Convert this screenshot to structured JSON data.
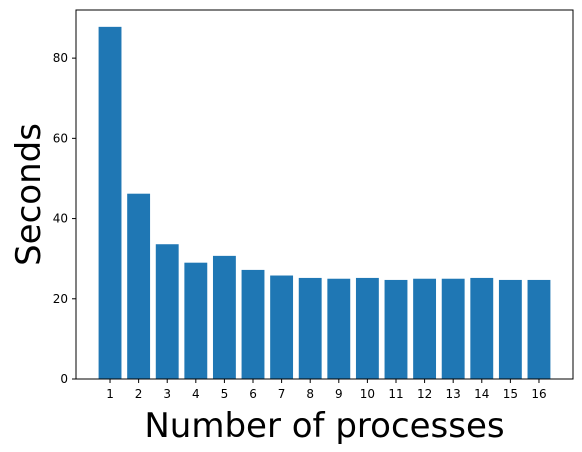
{
  "chart_data": {
    "type": "bar",
    "title": "",
    "xlabel": "Number of processes",
    "ylabel": "Seconds",
    "categories": [
      "1",
      "2",
      "3",
      "4",
      "5",
      "6",
      "7",
      "8",
      "9",
      "10",
      "11",
      "12",
      "13",
      "14",
      "15",
      "16"
    ],
    "values": [
      87.8,
      46.2,
      33.6,
      29.0,
      30.7,
      27.2,
      25.8,
      25.2,
      25.0,
      25.2,
      24.7,
      25.0,
      25.0,
      25.2,
      24.7,
      24.7
    ],
    "ylim": [
      0,
      92
    ],
    "yticks": [
      0,
      20,
      40,
      60,
      80
    ],
    "grid": false,
    "legend": "none",
    "bar_color": "#1f77b4"
  }
}
